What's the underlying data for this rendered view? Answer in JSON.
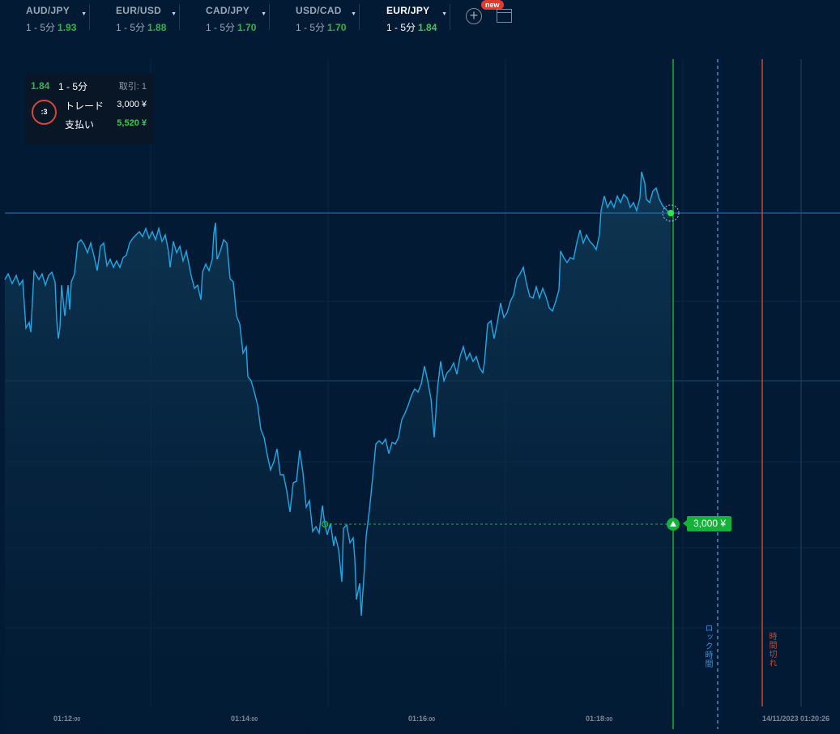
{
  "tabs": [
    {
      "name": "AUD/JPY",
      "range": "1 - 5分",
      "rate": "1.93",
      "active": false
    },
    {
      "name": "EUR/USD",
      "range": "1 - 5分",
      "rate": "1.88",
      "active": false
    },
    {
      "name": "CAD/JPY",
      "range": "1 - 5分",
      "rate": "1.70",
      "active": false
    },
    {
      "name": "USD/CAD",
      "range": "1 - 5分",
      "rate": "1.70",
      "active": false
    },
    {
      "name": "EUR/JPY",
      "range": "1 - 5分",
      "rate": "1.84",
      "active": true
    }
  ],
  "new_badge": "new",
  "panel": {
    "payout_rate": "1.84",
    "range": "1 - 5分",
    "trades": "取引: 1",
    "timer": ":3",
    "trade_label": "トレード",
    "trade_value": "3,000 ¥",
    "payout_label": "支払い",
    "payout_value": "5,520 ¥"
  },
  "chart": {
    "x_ticks": [
      {
        "time": "01:12",
        "sec": ":00"
      },
      {
        "time": "01:14",
        "sec": ":00"
      },
      {
        "time": "01:16",
        "sec": ":00"
      },
      {
        "time": "01:18",
        "sec": ":00"
      }
    ],
    "expiry_datetime": "14/11/2023 01:20:26",
    "lock_label": "ロック時間",
    "expiry_label": "時間切れ",
    "bet_label": "3,000 ¥",
    "colors": {
      "line": "#1ea8e6",
      "up": "#15b23a",
      "lock": "#3f8fd8",
      "expiry": "#c44a2b"
    }
  }
}
